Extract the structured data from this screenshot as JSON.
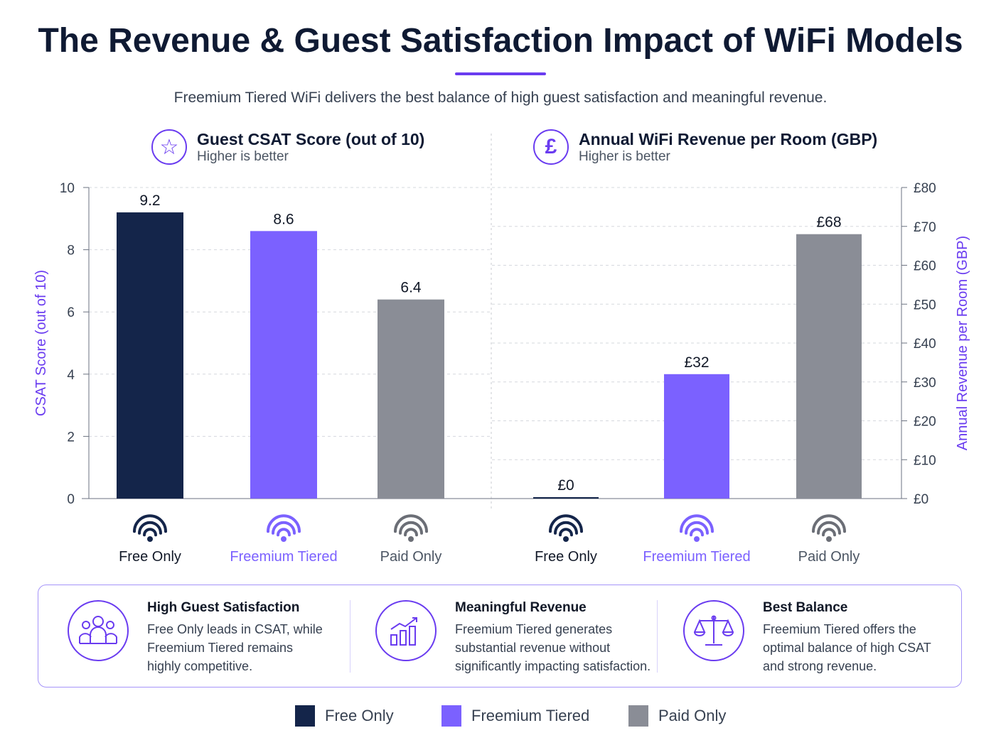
{
  "title": "The Revenue & Guest Satisfaction Impact of WiFi Models",
  "subtitle": "Freemium Tiered WiFi delivers the best balance of high guest satisfaction and meaningful revenue.",
  "colors": {
    "free_only": "#14254a",
    "freemium_tiered": "#7b61ff",
    "paid_only": "#8a8d96",
    "accent": "#6a3cf0"
  },
  "chart_data": [
    {
      "type": "bar",
      "title": "Guest CSAT Score (out of 10)",
      "subtitle": "Higher is better",
      "icon": "star-icon",
      "categories": [
        "Free Only",
        "Freemium Tiered",
        "Paid Only"
      ],
      "values": [
        9.2,
        8.6,
        6.4
      ],
      "data_labels": [
        "9.2",
        "8.6",
        "6.4"
      ],
      "ylabel": "CSAT Score (out of 10)",
      "ylim": [
        0,
        10
      ],
      "yticks": [
        "0",
        "2",
        "4",
        "6",
        "8",
        "10"
      ],
      "y_axis_side": "left",
      "grid": true
    },
    {
      "type": "bar",
      "title": "Annual WiFi Revenue per Room (GBP)",
      "subtitle": "Higher is better",
      "icon": "pound-icon",
      "categories": [
        "Free Only",
        "Freemium Tiered",
        "Paid Only"
      ],
      "values": [
        0,
        32,
        68
      ],
      "data_labels": [
        "£0",
        "£32",
        "£68"
      ],
      "ylabel": "Annual Revenue per Room (GBP)",
      "ylim": [
        0,
        80
      ],
      "yticks": [
        "£0",
        "£10",
        "£20",
        "£30",
        "£40",
        "£50",
        "£60",
        "£70",
        "£80"
      ],
      "y_axis_side": "right",
      "grid": true
    }
  ],
  "features": [
    {
      "icon": "people-icon",
      "title": "High Guest Satisfaction",
      "lines": [
        "Free Only leads in CSAT, while",
        "Freemium Tiered remains",
        "highly competitive."
      ]
    },
    {
      "icon": "growth-chart-icon",
      "title": "Meaningful Revenue",
      "lines": [
        "Freemium Tiered generates",
        "substantial revenue without",
        "significantly impacting satisfaction."
      ]
    },
    {
      "icon": "balance-scale-icon",
      "title": "Best Balance",
      "lines": [
        "Freemium Tiered offers the",
        "optimal balance of high CSAT",
        "and strong revenue."
      ]
    }
  ],
  "legend": [
    "Free Only",
    "Freemium Tiered",
    "Paid Only"
  ]
}
